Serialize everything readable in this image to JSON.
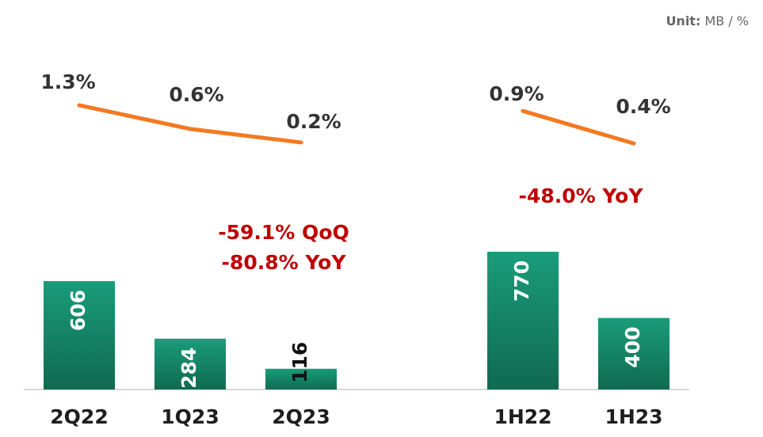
{
  "unit_label": "Unit:",
  "unit": "MB / %",
  "chart_data": [
    {
      "type": "bar",
      "categories": [
        "2Q22",
        "1Q23",
        "2Q23"
      ],
      "values": [
        606,
        284,
        116
      ],
      "color": "#14876a",
      "ylim": [
        0,
        1000
      ],
      "line": {
        "values": [
          1.3,
          0.6,
          0.2
        ],
        "value_labels": [
          "1.3%",
          "0.6%",
          "0.2%"
        ],
        "color": "#f47920",
        "y2lim": [
          0,
          2
        ]
      },
      "annotations": [
        "-59.1% QoQ",
        "-80.8% YoY"
      ]
    },
    {
      "type": "bar",
      "categories": [
        "1H22",
        "1H23"
      ],
      "values": [
        770,
        400
      ],
      "color": "#14876a",
      "ylim": [
        0,
        1000
      ],
      "line": {
        "values": [
          0.9,
          0.4
        ],
        "value_labels": [
          "0.9%",
          "0.4%"
        ],
        "color": "#f47920",
        "y2lim": [
          0,
          1
        ]
      },
      "annotations": [
        "-48.0% YoY"
      ]
    }
  ]
}
